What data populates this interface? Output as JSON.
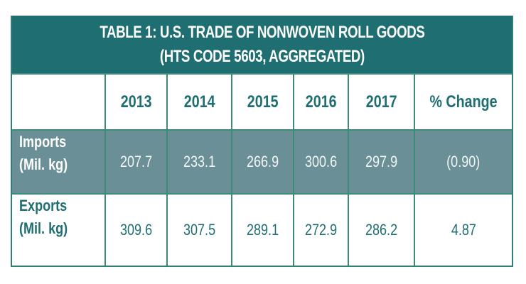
{
  "table": {
    "title_line1": "TABLE 1: U.S. TRADE OF NONWOVEN ROLL GOODS",
    "title_line2": "(HTS CODE 5603, AGGREGATED)",
    "columns": [
      "",
      "2013",
      "2014",
      "2015",
      "2016",
      "2017",
      "% Change"
    ],
    "rows": [
      {
        "label_line1": "Imports",
        "label_line2": "(Mil. kg)",
        "values": [
          "207.7",
          "233.1",
          "266.9",
          "300.6",
          "297.9",
          "(0.90)"
        ]
      },
      {
        "label_line1": "Exports",
        "label_line2": "(Mil. kg)",
        "values": [
          "309.6",
          "307.5",
          "289.1",
          "272.9",
          "286.2",
          "4.87"
        ]
      }
    ],
    "colors": {
      "header_bg": "#1e6e72",
      "imports_row_bg": "#6b8f96",
      "text_teal": "#1e6e72",
      "border": "#3d8a78"
    }
  }
}
